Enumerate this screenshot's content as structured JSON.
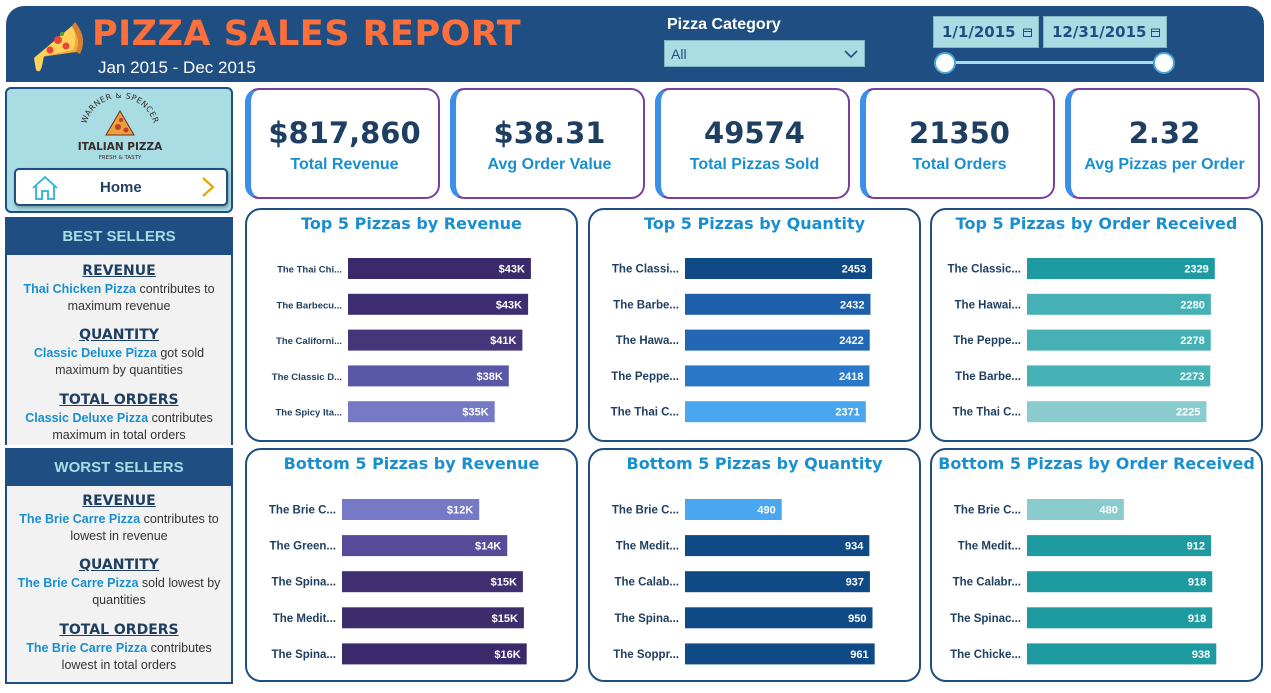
{
  "header": {
    "title": "PIZZA SALES REPORT",
    "subtitle": "Jan 2015 - Dec 2015",
    "category_label": "Pizza Category",
    "category_value": "All",
    "date_start": "1/1/2015",
    "date_end": "12/31/2015"
  },
  "logo": {
    "top_text": "WARNER & SPENCER",
    "name": "ITALIAN PIZZA",
    "tagline": "FRESH & TASTY"
  },
  "home_button": {
    "label": "Home"
  },
  "best_sellers": {
    "heading": "BEST SELLERS",
    "revenue": {
      "title": "REVENUE",
      "pizza": "Thai Chicken Pizza",
      "text": " contributes to maximum revenue"
    },
    "quantity": {
      "title": "QUANTITY",
      "pizza": "Classic Deluxe Pizza",
      "text": " got sold maximum by quantities"
    },
    "orders": {
      "title": "TOTAL ORDERS",
      "pizza": "Classic Deluxe Pizza",
      "text": " contributes maximum in total orders"
    }
  },
  "worst_sellers": {
    "heading": "WORST SELLERS",
    "revenue": {
      "title": "REVENUE",
      "pizza": "The Brie Carre Pizza",
      "text": " contributes to lowest in revenue"
    },
    "quantity": {
      "title": "QUANTITY",
      "pizza": "The Brie Carre Pizza",
      "text": " sold lowest by quantities"
    },
    "orders": {
      "title": "TOTAL ORDERS",
      "pizza": "The Brie Carre Pizza",
      "text": " contributes lowest  in total orders"
    }
  },
  "kpis": [
    {
      "value": "$817,860",
      "label": "Total Revenue"
    },
    {
      "value": "$38.31",
      "label": "Avg Order Value"
    },
    {
      "value": "49574",
      "label": "Total Pizzas Sold"
    },
    {
      "value": "21350",
      "label": "Total Orders"
    },
    {
      "value": "2.32",
      "label": "Avg Pizzas per Order"
    }
  ],
  "chart_data": [
    {
      "type": "bar",
      "orientation": "horizontal",
      "title": "Top 5 Pizzas by Revenue",
      "categories": [
        "The Thai Chi...",
        "The Barbecu...",
        "The Californi...",
        "The Classic D...",
        "The Spicy Ita..."
      ],
      "values": [
        43434,
        42768,
        41410,
        38180,
        34831
      ],
      "labels": [
        "$43K",
        "$43K",
        "$41K",
        "$38K",
        "$35K"
      ],
      "colors": [
        "#3b2a6b",
        "#3d2d72",
        "#453679",
        "#5a56a8",
        "#7579c6"
      ],
      "xlim": [
        0,
        52000
      ]
    },
    {
      "type": "bar",
      "orientation": "horizontal",
      "title": "Top 5 Pizzas by Quantity",
      "categories": [
        "The Classi...",
        "The Barbe...",
        "The Hawa...",
        "The Peppe...",
        "The Thai C..."
      ],
      "values": [
        2453,
        2432,
        2422,
        2418,
        2371
      ],
      "labels": [
        "2453",
        "2432",
        "2422",
        "2418",
        "2371"
      ],
      "colors": [
        "#0f4a86",
        "#1d5fa8",
        "#2167b3",
        "#2b78c8",
        "#4aa6ee"
      ],
      "xlim": [
        0,
        2950
      ]
    },
    {
      "type": "bar",
      "orientation": "horizontal",
      "title": "Top 5 Pizzas by Order Received",
      "categories": [
        "The Classic...",
        "The Hawai...",
        "The Peppe...",
        "The Barbe...",
        "The Thai C..."
      ],
      "values": [
        2329,
        2280,
        2278,
        2273,
        2225
      ],
      "labels": [
        "2329",
        "2280",
        "2278",
        "2273",
        "2225"
      ],
      "colors": [
        "#1e9aa1",
        "#45b1b4",
        "#45b1b4",
        "#46b2b6",
        "#8acccd"
      ],
      "xlim": [
        0,
        2790
      ]
    },
    {
      "type": "bar",
      "orientation": "horizontal",
      "title": "Bottom 5 Pizzas by Revenue",
      "categories": [
        "The Brie C...",
        "The Green...",
        "The Spina...",
        "The Medit...",
        "The Spina..."
      ],
      "values": [
        11588,
        13955,
        15277,
        15360,
        15596
      ],
      "labels": [
        "$12K",
        "$14K",
        "$15K",
        "$15K",
        "$16K"
      ],
      "colors": [
        "#7579c6",
        "#574a98",
        "#3f2f70",
        "#3d2d6c",
        "#3b2a6b"
      ],
      "xlim": [
        0,
        19000
      ]
    },
    {
      "type": "bar",
      "orientation": "horizontal",
      "title": "Bottom 5 Pizzas by Quantity",
      "categories": [
        "The Brie C...",
        "The Medit...",
        "The Calab...",
        "The Spina...",
        "The Soppr..."
      ],
      "values": [
        490,
        934,
        937,
        950,
        961
      ],
      "labels": [
        "490",
        "934",
        "937",
        "950",
        "961"
      ],
      "colors": [
        "#4aa6ee",
        "#0f4a86",
        "#0f4a86",
        "#0f4a86",
        "#0f4a86"
      ],
      "xlim": [
        0,
        1140
      ]
    },
    {
      "type": "bar",
      "orientation": "horizontal",
      "title": "Bottom 5 Pizzas by Order Received",
      "categories": [
        "The Brie C...",
        "The Medit...",
        "The Calabr...",
        "The Spinac...",
        "The Chicke..."
      ],
      "values": [
        480,
        912,
        918,
        918,
        938
      ],
      "labels": [
        "480",
        "912",
        "918",
        "918",
        "938"
      ],
      "colors": [
        "#8acccd",
        "#1e9aa1",
        "#1e9aa1",
        "#1e9aa1",
        "#1e9aa1"
      ],
      "xlim": [
        0,
        1115
      ]
    }
  ]
}
